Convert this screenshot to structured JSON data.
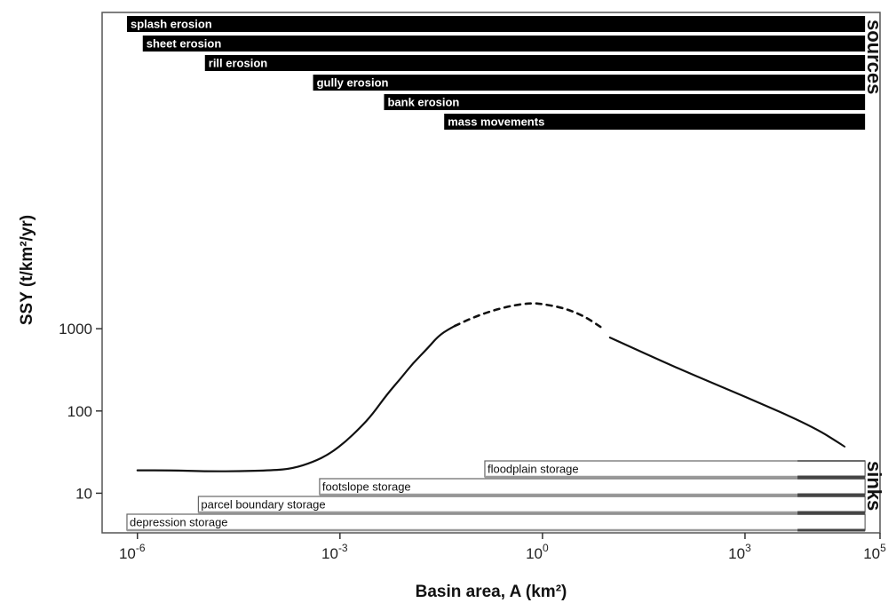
{
  "chart_data": {
    "type": "line",
    "xlabel": "Basin area, A (km²)",
    "ylabel": "SSY (t/km²/yr)",
    "x_scale": "log",
    "y_scale": "log",
    "xlim": [
      3e-07,
      100000
    ],
    "ylim": [
      3.3,
      7000000
    ],
    "x_ticks": [
      {
        "value": 1e-06,
        "base": "10",
        "exp": "-6"
      },
      {
        "value": 0.001,
        "base": "10",
        "exp": "-3"
      },
      {
        "value": 1,
        "base": "10",
        "exp": "0"
      },
      {
        "value": 1000,
        "base": "10",
        "exp": "3"
      },
      {
        "value": 100000,
        "base": "10",
        "exp": "5"
      }
    ],
    "y_ticks": [
      {
        "value": 10,
        "label": "10"
      },
      {
        "value": 100,
        "label": "100"
      },
      {
        "value": 1000,
        "label": "1000"
      }
    ],
    "grid": false,
    "legend": "none",
    "series": [
      {
        "style": "solid",
        "x": [
          1e-06,
          3e-06,
          1e-05,
          3e-05,
          0.0001,
          0.0002,
          0.0004,
          0.0007,
          0.0012,
          0.002,
          0.003,
          0.005,
          0.008,
          0.012,
          0.02,
          0.03,
          0.05
        ],
        "y": [
          19,
          19,
          18.5,
          18.5,
          19,
          20,
          24,
          30,
          42,
          63,
          90,
          160,
          250,
          380,
          580,
          850,
          1080
        ]
      },
      {
        "style": "dashed",
        "x": [
          0.05,
          0.1,
          0.2,
          0.4,
          0.7,
          1,
          2,
          4,
          8
        ],
        "y": [
          1080,
          1400,
          1700,
          1950,
          2050,
          2000,
          1800,
          1450,
          1000
        ]
      },
      {
        "style": "solid",
        "x": [
          10,
          100,
          1000,
          10000,
          30000
        ],
        "y": [
          780,
          330,
          150,
          65,
          37
        ]
      }
    ],
    "sources": {
      "label": "sources",
      "x_end": 60000,
      "bars": [
        {
          "label": "splash erosion",
          "x_start": 7e-07
        },
        {
          "label": "sheet erosion",
          "x_start": 1.2e-06
        },
        {
          "label": "rill erosion",
          "x_start": 1e-05
        },
        {
          "label": "gully erosion",
          "x_start": 0.0004
        },
        {
          "label": "bank erosion",
          "x_start": 0.0045
        },
        {
          "label": "mass movements",
          "x_start": 0.035
        }
      ]
    },
    "sinks": {
      "label": "sinks",
      "x_end": 60000,
      "fade_from": 6000,
      "bars": [
        {
          "label": "floodplain storage",
          "x_start": 0.14
        },
        {
          "label": "footslope storage",
          "x_start": 0.0005
        },
        {
          "label": "parcel boundary storage",
          "x_start": 8e-06
        },
        {
          "label": "depression storage",
          "x_start": 7e-07
        }
      ]
    }
  }
}
